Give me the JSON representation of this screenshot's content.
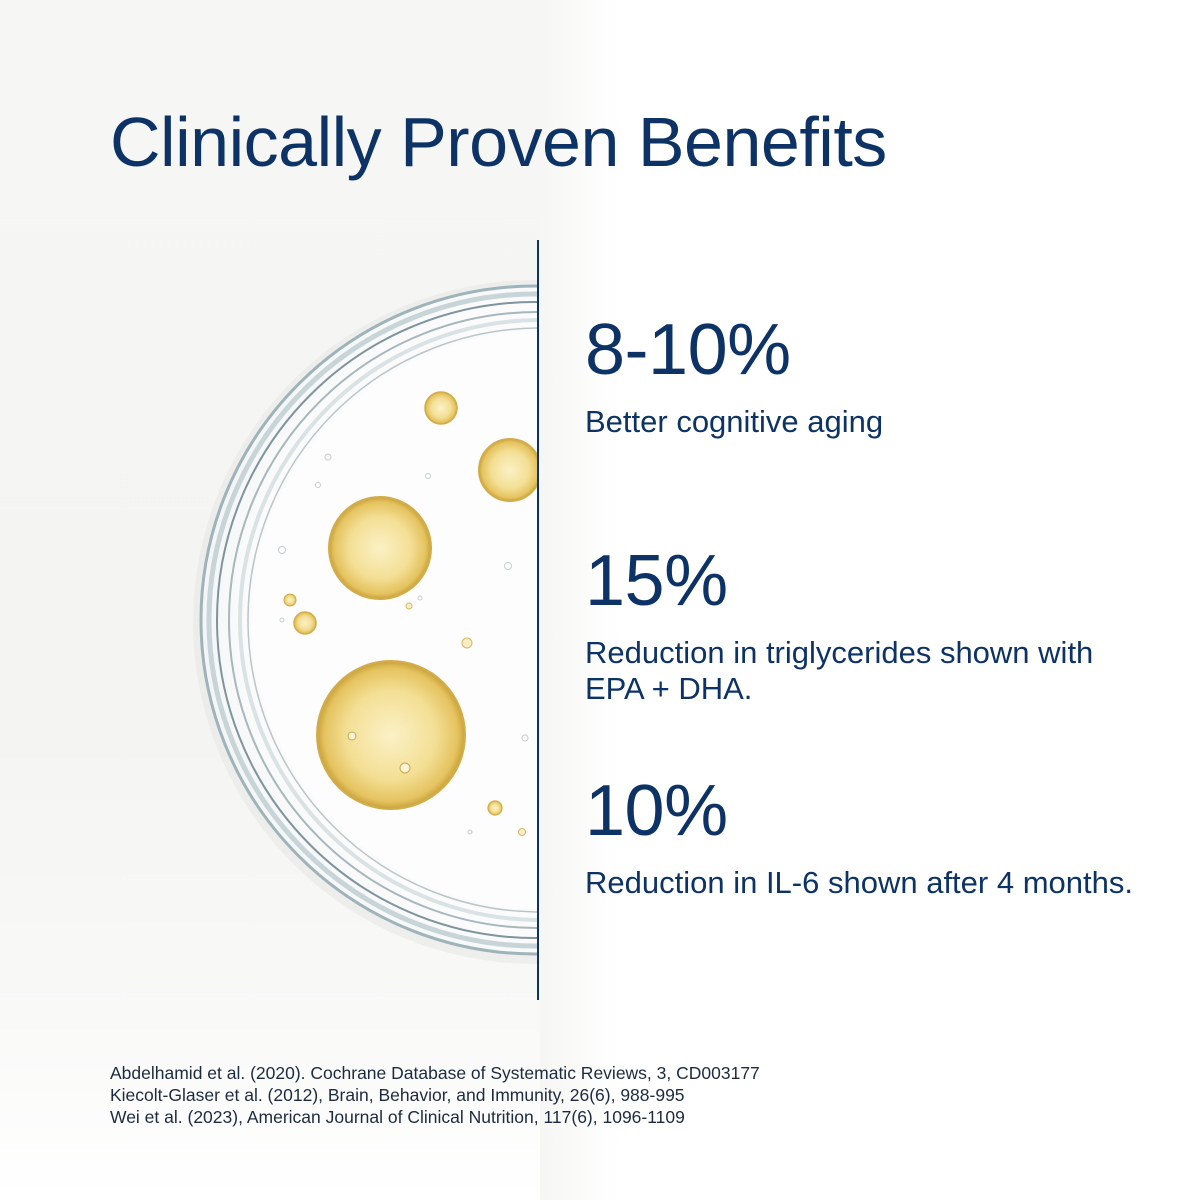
{
  "title": "Clinically Proven Benefits",
  "colors": {
    "brand_navy": "#0d3366",
    "oil_gold": "#e9cd6b"
  },
  "stats": [
    {
      "value": "8-10%",
      "description": "Better cognitive aging"
    },
    {
      "value": "15%",
      "description": "Reduction in triglycerides shown with EPA + DHA."
    },
    {
      "value": "10%",
      "description": "Reduction in IL-6 shown after 4 months."
    }
  ],
  "references": [
    "Abdelhamid et al. (2020). Cochrane Database of Systematic Reviews, 3, CD003177",
    "Kiecolt-Glaser et al. (2012), Brain, Behavior, and Immunity, 26(6), 988-995",
    "Wei et al. (2023), American Journal of Clinical Nutrition, 117(6), 1096-1109"
  ]
}
